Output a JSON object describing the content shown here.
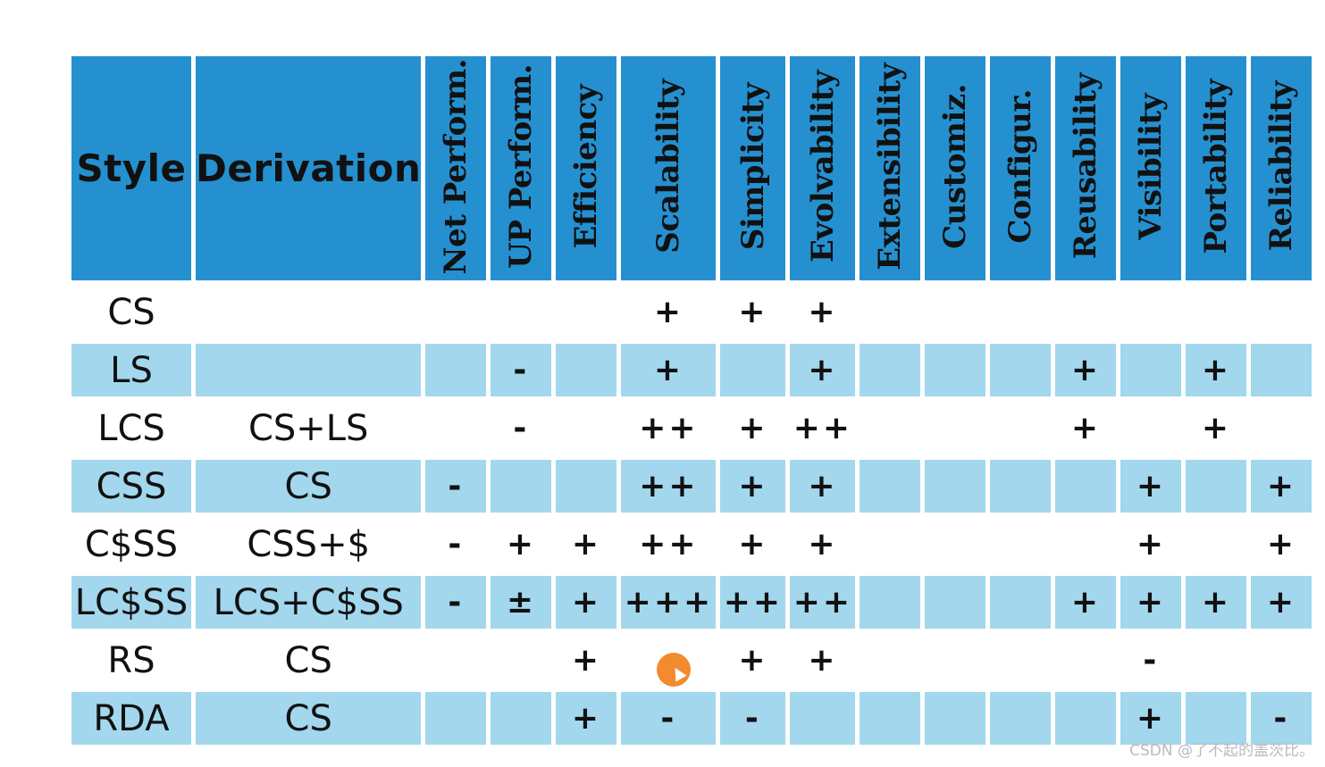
{
  "table": {
    "headers": {
      "style": "Style",
      "derivation": "Derivation",
      "properties": [
        "Net Perform.",
        "UP Perform.",
        "Efficiency",
        "Scalability",
        "Simplicity",
        "Evolvability",
        "Extensibility",
        "Customiz.",
        "Configur.",
        "Reusability",
        "Visibility",
        "Portability",
        "Reliability"
      ]
    },
    "rows": [
      {
        "style": "CS",
        "derivation": "",
        "cells": [
          "",
          "",
          "",
          "+",
          "+",
          "+",
          "",
          "",
          "",
          "",
          "",
          "",
          ""
        ]
      },
      {
        "style": "LS",
        "derivation": "",
        "cells": [
          "",
          "-",
          "",
          "+",
          "",
          "+",
          "",
          "",
          "",
          "+",
          "",
          "+",
          ""
        ]
      },
      {
        "style": "LCS",
        "derivation": "CS+LS",
        "cells": [
          "",
          "-",
          "",
          "++",
          "+",
          "++",
          "",
          "",
          "",
          "+",
          "",
          "+",
          ""
        ]
      },
      {
        "style": "CSS",
        "derivation": "CS",
        "cells": [
          "-",
          "",
          "",
          "++",
          "+",
          "+",
          "",
          "",
          "",
          "",
          "+",
          "",
          "+"
        ]
      },
      {
        "style": "C$SS",
        "derivation": "CSS+$",
        "cells": [
          "-",
          "+",
          "+",
          "++",
          "+",
          "+",
          "",
          "",
          "",
          "",
          "+",
          "",
          "+"
        ]
      },
      {
        "style": "LC$SS",
        "derivation": "LCS+C$SS",
        "cells": [
          "-",
          "±",
          "+",
          "+++",
          "++",
          "++",
          "",
          "",
          "",
          "+",
          "+",
          "+",
          "+"
        ]
      },
      {
        "style": "RS",
        "derivation": "CS",
        "cells": [
          "",
          "",
          "+",
          "-",
          "+",
          "+",
          "",
          "",
          "",
          "",
          "-",
          "",
          ""
        ]
      },
      {
        "style": "RDA",
        "derivation": "CS",
        "cells": [
          "",
          "",
          "+",
          "-",
          "-",
          "",
          "",
          "",
          "",
          "",
          "+",
          "",
          "-"
        ]
      }
    ]
  },
  "colors": {
    "header_bg": "#2590cf",
    "shaded_row_bg": "#a2d7ee",
    "cursor": "#f28a2e"
  },
  "watermark": "CSDN @了不起的盖茨比。"
}
